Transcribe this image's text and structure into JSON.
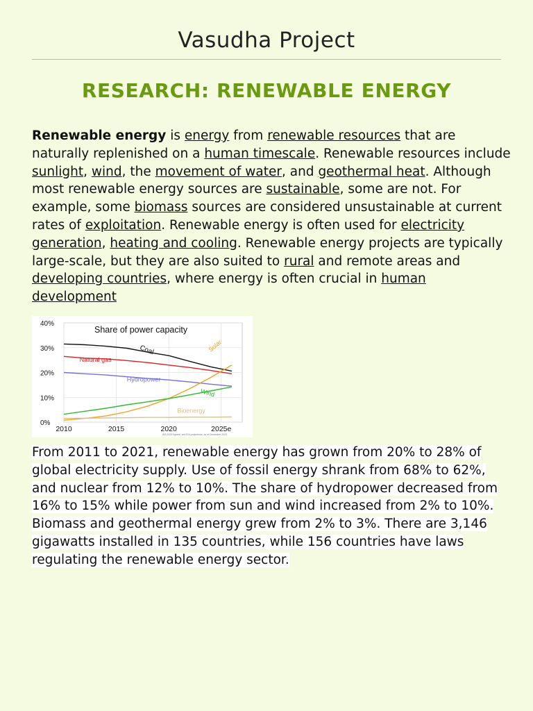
{
  "site_title": "Vasudha Project",
  "heading": "RESEARCH: RENEWABLE ENERGY",
  "p1": {
    "t0": "Renewable energy",
    "t1": " is ",
    "t2": "energy",
    "t3": " from ",
    "t4": "renewable resources",
    "t5": " that are naturally replenished on a ",
    "t6": "human timescale",
    "t7": ". Renewable resources include ",
    "t8": "sunlight",
    "t9": ", ",
    "t10": "wind",
    "t11": ", the ",
    "t12": "movement of water",
    "t13": ", and ",
    "t14": "geothermal heat",
    "t15": ". Although most renewable energy sources are ",
    "t16": "sustainable",
    "t17": ", some are not. For example, some ",
    "t18": "biomass",
    "t19": " sources are considered unsustainable at current rates of ",
    "t20": "exploitation",
    "t21": ". Renewable energy is often used for ",
    "t22": "electricity generation",
    "t23": ", ",
    "t24": "heating and cooling",
    "t25": ". Renewable energy projects are typically large-scale, but they are also suited to ",
    "t26": "rural",
    "t27": " and remote areas and ",
    "t28": "developing countries",
    "t29": ", where energy is often crucial in ",
    "t30": "human development"
  },
  "p2": {
    "t0": "From 2011 to 2021, renewable energy has grown from 20% to 28% of global electricity supply. Use of ",
    "t1": "fossil",
    "t2": " energy shrank from 68% to 62%, and nuclear from 12% to 10%. The share of hydropower decreased from 16% to 15% while power from sun and wind increased from 2% to 10%. ",
    "t3": "Biomass",
    "t4": " and geothermal energy grew from 2% to 3%. There are 3,146 gigawatts installed in 135 countries, while 156 countries have laws regulating the renewable energy sector."
  },
  "chart_data": {
    "type": "line",
    "title": "Share of power capacity",
    "xlabel": "",
    "ylabel": "",
    "xlim": [
      2010,
      2027
    ],
    "ylim": [
      0,
      40
    ],
    "x_ticks": [
      "2010",
      "2015",
      "2020",
      "2025e"
    ],
    "x_tick_values": [
      2010,
      2015,
      2020,
      2025
    ],
    "y_ticks": [
      "0%",
      "10%",
      "20%",
      "30%",
      "40%"
    ],
    "y_tick_values": [
      0,
      10,
      20,
      30,
      40
    ],
    "footnote": "IEA 2023 figures; see IEA projections, as of December 2023",
    "series": [
      {
        "name": "Coal",
        "color": "#111111",
        "x": [
          2010,
          2012,
          2014,
          2016,
          2018,
          2020,
          2022,
          2024,
          2026
        ],
        "y": [
          31.5,
          31.2,
          30.6,
          29.8,
          28.2,
          26.8,
          24.5,
          22.3,
          20.6
        ]
      },
      {
        "name": "Natural gas",
        "color": "#d82020",
        "x": [
          2010,
          2012,
          2014,
          2016,
          2018,
          2020,
          2022,
          2024,
          2026
        ],
        "y": [
          26.5,
          25.8,
          25.5,
          24.8,
          24.0,
          23.0,
          22.0,
          20.8,
          19.5
        ]
      },
      {
        "name": "Hydropower",
        "color": "#7070dd",
        "x": [
          2010,
          2012,
          2014,
          2016,
          2018,
          2020,
          2022,
          2024,
          2026
        ],
        "y": [
          20.0,
          19.5,
          19.0,
          18.3,
          17.6,
          17.0,
          16.2,
          15.3,
          14.5
        ]
      },
      {
        "name": "Solar",
        "color": "#f5a020",
        "x": [
          2010,
          2012,
          2014,
          2016,
          2018,
          2020,
          2022,
          2024,
          2026
        ],
        "y": [
          0.8,
          1.5,
          2.5,
          4.2,
          6.5,
          9.5,
          13.5,
          18.0,
          23.0
        ]
      },
      {
        "name": "Wind",
        "color": "#30bb30",
        "x": [
          2010,
          2012,
          2014,
          2016,
          2018,
          2020,
          2022,
          2024,
          2026
        ],
        "y": [
          3.2,
          4.4,
          5.6,
          7.0,
          8.2,
          9.5,
          11.0,
          12.6,
          14.2
        ]
      },
      {
        "name": "Bioenergy",
        "color": "#d8c090",
        "x": [
          2010,
          2012,
          2014,
          2016,
          2018,
          2020,
          2022,
          2024,
          2026
        ],
        "y": [
          1.5,
          1.6,
          1.7,
          1.8,
          1.9,
          1.9,
          2.0,
          2.0,
          2.1
        ]
      }
    ]
  }
}
